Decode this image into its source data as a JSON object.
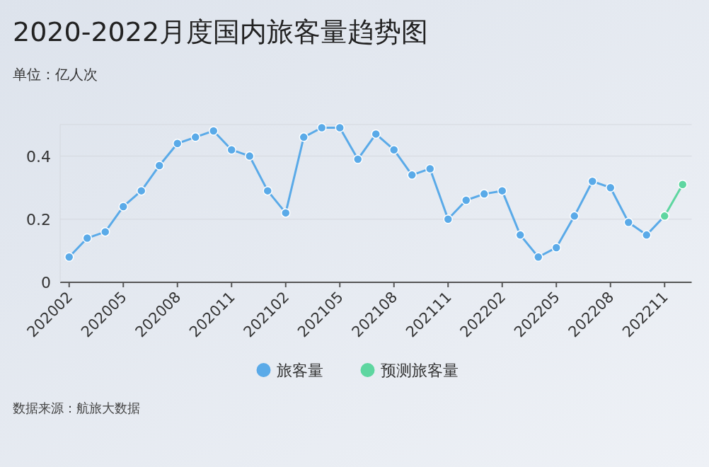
{
  "chart_data": {
    "type": "line",
    "title": "2020-2022月度国内旅客量趋势图",
    "subtitle": "单位：亿人次",
    "categories": [
      "202002",
      null,
      null,
      "202005",
      null,
      null,
      "202008",
      null,
      null,
      "202011",
      null,
      null,
      "202102",
      null,
      null,
      "202105",
      null,
      null,
      "202108",
      null,
      null,
      "202111",
      null,
      null,
      "202202",
      null,
      null,
      "202205",
      null,
      null,
      "202208",
      null,
      null,
      "202211",
      null
    ],
    "series": [
      {
        "name": "旅客量",
        "color": "#5aaae8",
        "values": [
          0.08,
          0.14,
          0.16,
          0.24,
          0.29,
          0.37,
          0.44,
          0.46,
          0.48,
          0.42,
          0.4,
          0.29,
          0.22,
          0.46,
          0.49,
          0.49,
          0.39,
          0.47,
          0.42,
          0.34,
          0.36,
          0.2,
          0.26,
          0.28,
          0.29,
          0.15,
          0.08,
          0.11,
          0.21,
          0.32,
          0.3,
          0.19,
          0.15,
          0.21,
          null
        ]
      },
      {
        "name": "预测旅客量",
        "color": "#5ed6a0",
        "values": [
          null,
          null,
          null,
          null,
          null,
          null,
          null,
          null,
          null,
          null,
          null,
          null,
          null,
          null,
          null,
          null,
          null,
          null,
          null,
          null,
          null,
          null,
          null,
          null,
          null,
          null,
          null,
          null,
          null,
          null,
          null,
          null,
          null,
          0.21,
          0.31
        ]
      }
    ],
    "ylim": [
      0,
      0.5
    ],
    "yticks": [
      0,
      0.2,
      0.4
    ],
    "grid": "y",
    "legend": "bottom",
    "marker": "circle",
    "line_style": "solid",
    "annotations": [
      "数据来源：航旅大数据"
    ]
  }
}
